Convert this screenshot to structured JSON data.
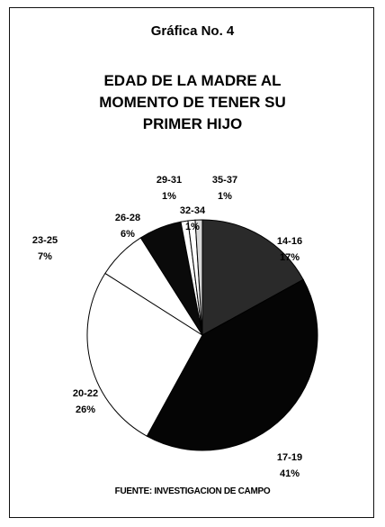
{
  "chart_data": {
    "type": "pie",
    "figure_label": "Gráfica No. 4",
    "title": "EDAD DE LA MADRE AL MOMENTO DE TENER SU PRIMER HIJO",
    "categories": [
      "14-16",
      "17-19",
      "20-22",
      "23-25",
      "26-28",
      "29-31",
      "32-34",
      "35-37"
    ],
    "values": [
      17,
      41,
      26,
      7,
      6,
      1,
      1,
      1
    ],
    "value_labels": [
      "17%",
      "41%",
      "26%",
      "7%",
      "6%",
      "1%",
      "1%",
      "1%"
    ],
    "colors": [
      "#2a2a2a",
      "#050505",
      "#ffffff",
      "#ffffff",
      "#0a0a0a",
      "#ffffff",
      "#ffffff",
      "#d8d8d8"
    ],
    "source": "FUENTE: INVESTIGACION DE CAMPO"
  }
}
